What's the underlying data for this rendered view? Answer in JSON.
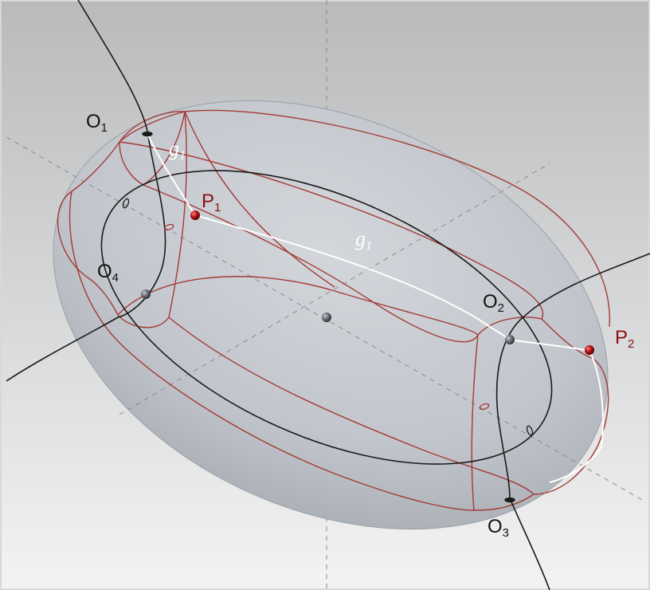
{
  "labels": {
    "o1": {
      "base": "O",
      "sub": "1"
    },
    "o2": {
      "base": "O",
      "sub": "2"
    },
    "o3": {
      "base": "O",
      "sub": "3"
    },
    "o4": {
      "base": "O",
      "sub": "4"
    },
    "p1": {
      "base": "P",
      "sub": "1"
    },
    "p2": {
      "base": "P",
      "sub": "2"
    },
    "g1_upper": {
      "base": "g",
      "sub": "1"
    },
    "g1_middle": {
      "base": "g",
      "sub": "1"
    }
  },
  "colors": {
    "background_top": "#b9bbbd",
    "background_bottom": "#f2f2f2",
    "ellipsoid_fill": "#c4c8ce",
    "ellipsoid_shade": "#9fa4ab",
    "red_curves": "#a33a36",
    "black_curves": "#1a1a1a",
    "geodesic": "#ffffff",
    "axis_dashes": "#8a8a8a",
    "red_label": "#8c1010",
    "point_red": "#b01010",
    "point_gray": "#666a70"
  }
}
